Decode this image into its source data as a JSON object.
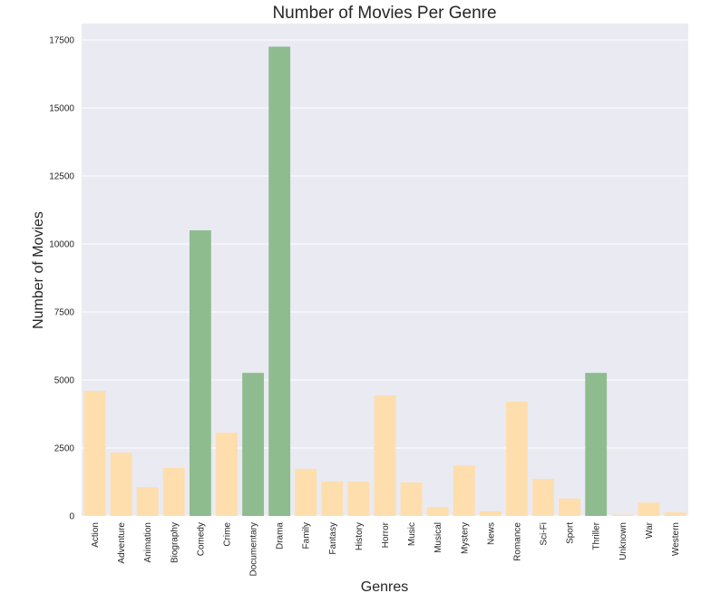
{
  "chart_data": {
    "type": "bar",
    "title": "Number of Movies Per Genre",
    "xlabel": "Genres",
    "ylabel": "Number of Movies",
    "ylim": [
      0,
      18100
    ],
    "yticks": [
      0,
      2500,
      5000,
      7500,
      10000,
      12500,
      15000,
      17500
    ],
    "grid": true,
    "legend": "none",
    "background_color": "#eaeaf2",
    "colors": {
      "highlight": "#8fbc8f",
      "default": "#ffdead"
    },
    "categories": [
      "Action",
      "Adventure",
      "Animation",
      "Biography",
      "Comedy",
      "Crime",
      "Documentary",
      "Drama",
      "Family",
      "Fantasy",
      "History",
      "Horror",
      "Music",
      "Musical",
      "Mystery",
      "News",
      "Romance",
      "Sci-Fi",
      "Sport",
      "Thriller",
      "Unknown",
      "War",
      "Western"
    ],
    "values": [
      4600,
      2330,
      1060,
      1770,
      10500,
      3060,
      5260,
      17250,
      1730,
      1270,
      1260,
      4430,
      1230,
      330,
      1860,
      170,
      4200,
      1360,
      640,
      5260,
      50,
      490,
      130
    ],
    "highlighted": [
      false,
      false,
      false,
      false,
      true,
      false,
      true,
      true,
      false,
      false,
      false,
      false,
      false,
      false,
      false,
      false,
      false,
      false,
      false,
      true,
      false,
      false,
      false
    ]
  }
}
